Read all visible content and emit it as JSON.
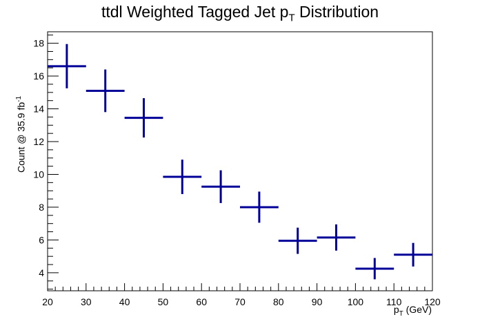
{
  "chart_data": {
    "type": "scatter",
    "title_prefix": "ttdl Weighted Tagged Jet p",
    "title_sub": "T",
    "title_suffix": " Distribution",
    "ylabel_main": "Count @ 35.9 fb",
    "ylabel_sup": "-1",
    "xlabel_prefix": "p",
    "xlabel_sub": "T",
    "xlabel_suffix": " (GeV)",
    "xlim": [
      20,
      120
    ],
    "ylim": [
      2.9,
      18.7
    ],
    "x_ticks": [
      20,
      30,
      40,
      50,
      60,
      70,
      80,
      90,
      100,
      110,
      120
    ],
    "y_ticks": [
      4,
      6,
      8,
      10,
      12,
      14,
      16,
      18
    ],
    "series": [
      {
        "color": "#000099",
        "points": [
          {
            "x": 25,
            "xerr": 5,
            "y": 16.6,
            "yerr": 1.35
          },
          {
            "x": 35,
            "xerr": 5,
            "y": 15.1,
            "yerr": 1.3
          },
          {
            "x": 45,
            "xerr": 5,
            "y": 13.45,
            "yerr": 1.2
          },
          {
            "x": 55,
            "xerr": 5,
            "y": 9.85,
            "yerr": 1.05
          },
          {
            "x": 65,
            "xerr": 5,
            "y": 9.25,
            "yerr": 1.0
          },
          {
            "x": 75,
            "xerr": 5,
            "y": 8.0,
            "yerr": 0.95
          },
          {
            "x": 85,
            "xerr": 5,
            "y": 5.95,
            "yerr": 0.8
          },
          {
            "x": 95,
            "xerr": 5,
            "y": 6.15,
            "yerr": 0.8
          },
          {
            "x": 105,
            "xerr": 5,
            "y": 4.25,
            "yerr": 0.65
          },
          {
            "x": 115,
            "xerr": 5,
            "y": 5.1,
            "yerr": 0.72
          }
        ]
      }
    ]
  }
}
